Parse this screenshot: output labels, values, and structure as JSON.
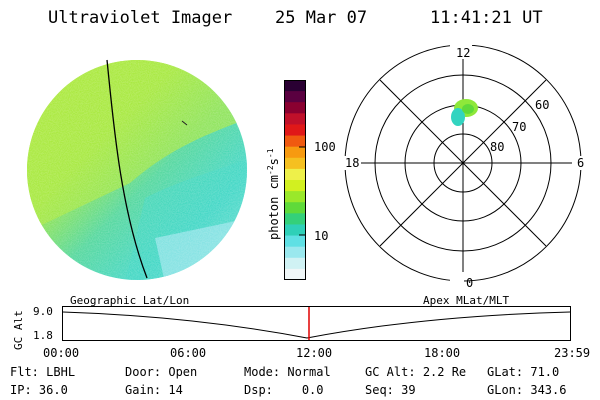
{
  "header": {
    "title": "Ultraviolet Imager",
    "date": "25 Mar 07",
    "time": "11:41:21 UT"
  },
  "colorbar": {
    "label_main": "photon cm",
    "label_sup1": "-2",
    "label_mid": "s",
    "label_sup2": "-1",
    "tick_labels": [
      "100",
      "10"
    ],
    "scale": "log",
    "colors": [
      "#2a0033",
      "#5a0040",
      "#8a0030",
      "#c0102a",
      "#e01818",
      "#f05a10",
      "#f79a10",
      "#f5c020",
      "#eef04a",
      "#d2f020",
      "#9ae82a",
      "#5fda3a",
      "#34d07a",
      "#2fd0b8",
      "#5fe0e4",
      "#9ae8ee",
      "#d0f2f4",
      "#f0f7f8"
    ]
  },
  "polar_plot": {
    "mlt_labels": {
      "top": "12",
      "right": "6",
      "bottom": "0",
      "left": "18"
    },
    "lat_labels": [
      "60",
      "70",
      "80"
    ]
  },
  "timeline": {
    "left_label": "Geographic Lat/Lon",
    "right_label": "Apex MLat/MLT",
    "axis_title": "GC Alt",
    "y_ticks": [
      "9.0",
      "1.8"
    ],
    "x_ticks": [
      "00:00",
      "06:00",
      "12:00",
      "18:00",
      "23:59"
    ],
    "current_time_marker": "11:41"
  },
  "status": {
    "row1": [
      {
        "label": "Flt:",
        "value": "LBHL"
      },
      {
        "label": "Door:",
        "value": "Open"
      },
      {
        "label": "Mode:",
        "value": "Normal"
      },
      {
        "label": "GC Alt:",
        "value": "2.2 Re"
      },
      {
        "label": "GLat:",
        "value": "71.0"
      }
    ],
    "row2": [
      {
        "label": "IP:",
        "value": "36.0"
      },
      {
        "label": "Gain:",
        "value": "14"
      },
      {
        "label": "Dsp:",
        "value": "0.0"
      },
      {
        "label": "Seq:",
        "value": "39"
      },
      {
        "label": "GLon:",
        "value": "343.6"
      }
    ]
  }
}
